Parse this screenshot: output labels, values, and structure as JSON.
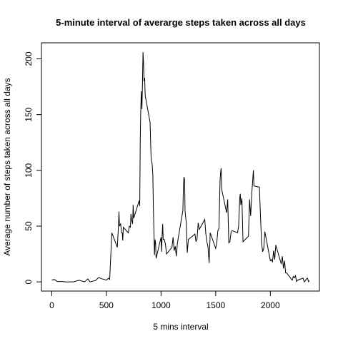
{
  "chart_data": {
    "type": "line",
    "title": "5-minute interval of averarge steps taken across all days",
    "x_label": "5 mins interval",
    "y_label": "Average number of steps taken across all days",
    "x": [
      0,
      25,
      50,
      100,
      120,
      200,
      250,
      300,
      330,
      350,
      400,
      430,
      450,
      500,
      520,
      530,
      550,
      600,
      610,
      615,
      620,
      630,
      640,
      645,
      650,
      655,
      700,
      710,
      720,
      725,
      730,
      740,
      745,
      750,
      800,
      805,
      810,
      815,
      820,
      825,
      830,
      835,
      840,
      845,
      850,
      855,
      900,
      905,
      910,
      915,
      920,
      925,
      930,
      935,
      940,
      945,
      950,
      955,
      1000,
      1005,
      1010,
      1015,
      1020,
      1030,
      1040,
      1050,
      1100,
      1110,
      1120,
      1130,
      1140,
      1150,
      1200,
      1205,
      1210,
      1215,
      1220,
      1230,
      1240,
      1250,
      1300,
      1310,
      1320,
      1330,
      1340,
      1350,
      1400,
      1410,
      1420,
      1430,
      1440,
      1450,
      1500,
      1510,
      1520,
      1530,
      1540,
      1545,
      1550,
      1555,
      1600,
      1610,
      1620,
      1630,
      1640,
      1650,
      1700,
      1710,
      1720,
      1725,
      1730,
      1740,
      1750,
      1800,
      1810,
      1820,
      1830,
      1845,
      1850,
      1900,
      1910,
      1920,
      1930,
      1940,
      1950,
      2000,
      2010,
      2020,
      2030,
      2040,
      2050,
      2100,
      2110,
      2120,
      2130,
      2140,
      2150,
      2200,
      2210,
      2220,
      2230,
      2240,
      2250,
      2300,
      2310,
      2320,
      2330,
      2340,
      2350,
      2355
    ],
    "series": [
      {
        "name": "steps",
        "color": "#000000",
        "values": [
          1.7,
          2.1,
          0.3,
          0.3,
          0,
          0,
          1.5,
          0,
          2.6,
          0,
          1.2,
          4,
          3,
          1.6,
          3.3,
          2.2,
          44,
          31,
          49,
          63,
          50,
          52,
          44,
          44,
          37,
          49,
          44,
          50,
          49,
          61,
          56,
          52,
          69,
          57,
          73,
          68,
          129,
          157,
          171,
          155,
          177,
          206,
          196,
          180,
          183,
          167,
          143,
          124,
          109,
          108,
          104,
          96,
          66,
          45,
          24,
          38,
          35,
          21,
          40,
          27,
          42,
          52,
          38,
          38,
          34,
          25,
          31,
          40,
          28,
          32,
          23,
          35,
          64,
          87,
          94,
          92,
          63,
          54,
          26,
          38,
          42,
          43,
          36,
          39,
          53,
          47,
          56,
          43,
          36,
          31,
          17,
          44,
          30,
          35,
          46,
          48,
          91,
          98,
          102,
          83,
          62,
          74,
          35,
          36,
          44,
          46,
          44,
          50,
          75,
          79,
          69,
          75,
          36,
          41,
          74,
          59,
          79,
          100,
          86,
          85,
          59,
          35,
          27,
          30,
          45,
          19,
          20,
          18,
          28,
          20,
          33,
          16,
          23,
          12,
          19,
          8,
          8,
          1.5,
          4.8,
          3.7,
          5.6,
          0.3,
          1.6,
          3.3,
          0,
          1,
          2.6,
          3.3,
          0.2,
          1.1
        ]
      }
    ],
    "xlim": [
      -94.2,
      2449.2
    ],
    "ylim": [
      -8.25,
      214.4
    ],
    "xticks": [
      0,
      500,
      1000,
      1500,
      2000
    ],
    "yticks": [
      0,
      50,
      100,
      150,
      200
    ]
  }
}
